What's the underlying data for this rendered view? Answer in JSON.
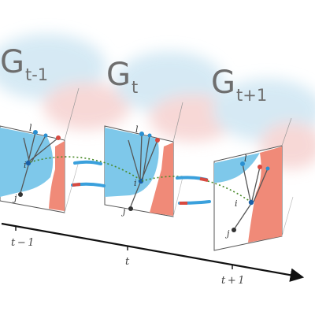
{
  "graphs": [
    {
      "base": "G",
      "subscript": "t-1"
    },
    {
      "base": "G",
      "subscript": "t"
    },
    {
      "base": "G",
      "subscript": "t+1"
    }
  ],
  "node_labels": {
    "center": "i",
    "neighbor": "j",
    "top": "l"
  },
  "timeline": {
    "ticks": [
      {
        "label": "t − 1"
      },
      {
        "label": "t"
      },
      {
        "label": "t + 1"
      }
    ]
  },
  "colors": {
    "blue_region": "#7ec8ea",
    "red_region": "#f08a78",
    "cloud_blue": "#cfe6f3",
    "cloud_red": "#f6d2d0",
    "dashed_link": "#4a8a2a",
    "axis": "#111111"
  }
}
